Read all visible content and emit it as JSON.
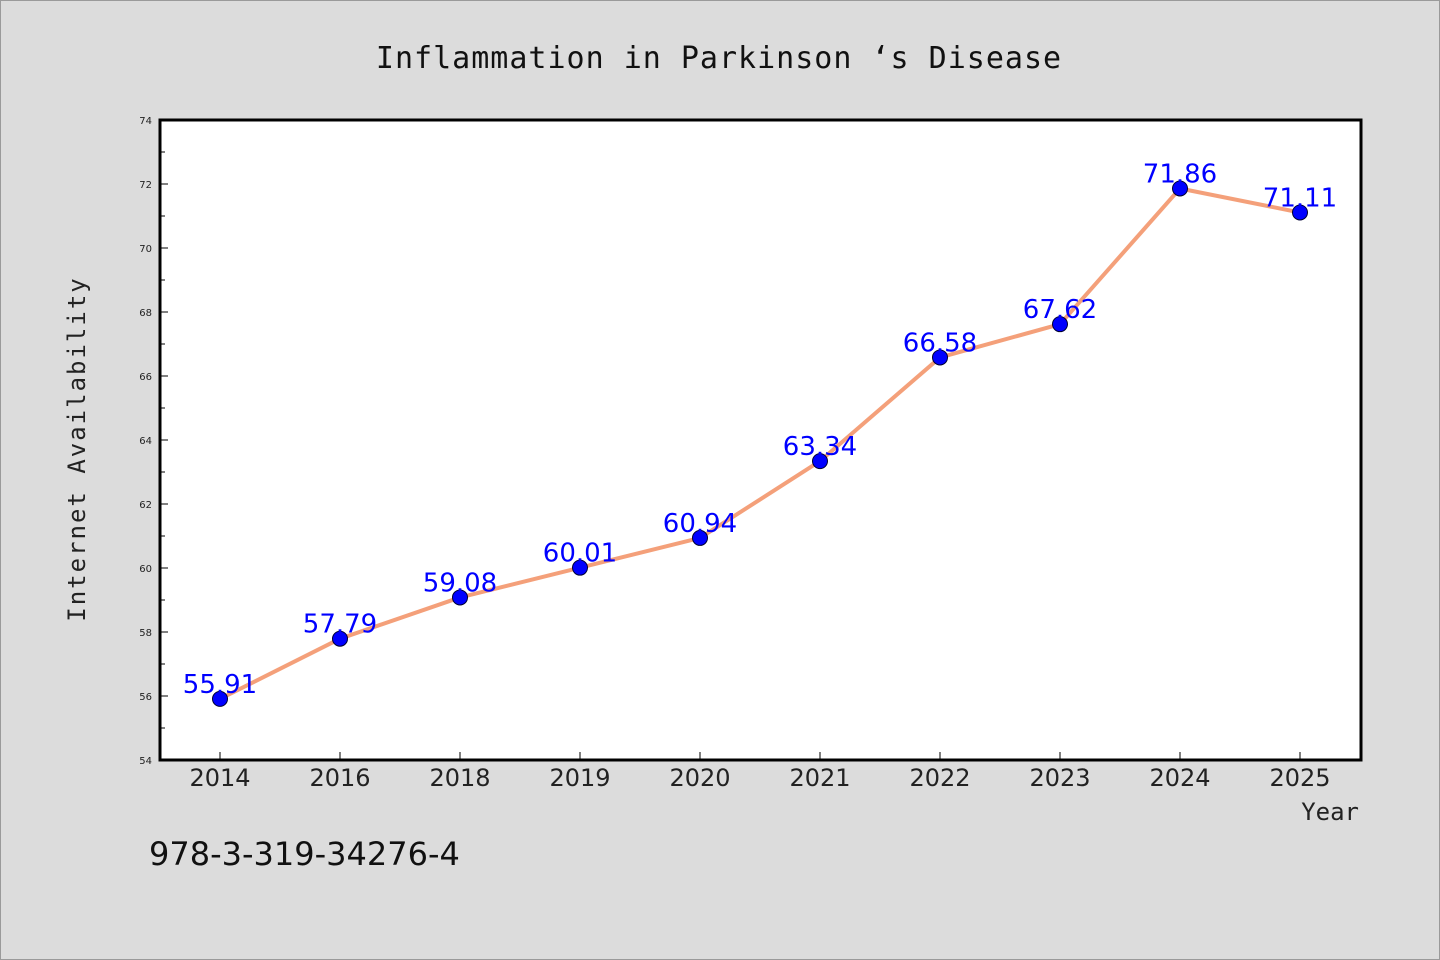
{
  "chart_data": {
    "type": "line",
    "title": "Inflammation in Parkinson ‘s Disease",
    "xlabel": "Year",
    "ylabel": "Internet Availability",
    "categories": [
      "2014",
      "2016",
      "2018",
      "2019",
      "2020",
      "2021",
      "2022",
      "2023",
      "2024",
      "2025"
    ],
    "series": [
      {
        "values": [
          55.91,
          57.79,
          59.08,
          60.01,
          60.94,
          63.34,
          66.58,
          67.62,
          71.86,
          71.11
        ],
        "line_color": "#f4a07a",
        "marker_color": "#0000ff"
      }
    ],
    "data_labels": [
      "55.91",
      "57.79",
      "59.08",
      "60.01",
      "60.94",
      "63.34",
      "66.58",
      "67.62",
      "71.86",
      "71.11"
    ],
    "ylim": [
      54,
      74
    ],
    "yticks": [
      "54",
      "56",
      "58",
      "60",
      "62",
      "64",
      "66",
      "68",
      "70",
      "72",
      "74"
    ],
    "grid": false,
    "legend": "none"
  },
  "footnote": "978-3-319-34276-4",
  "colors": {
    "figure_background": "#dcdcdc",
    "plot_background": "#ffffff",
    "line": "#f4a07a",
    "marker": "#0000ff",
    "data_label": "#0000ff"
  }
}
